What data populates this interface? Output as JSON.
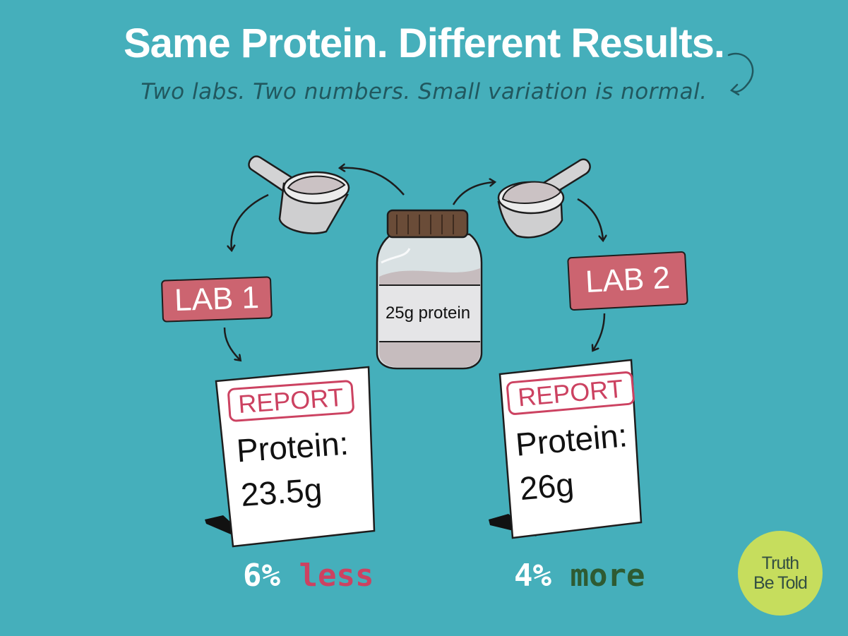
{
  "header": {
    "title": "Same Protein. Different Results.",
    "subtitle": "Two labs. Two numbers. Small variation is normal."
  },
  "jar": {
    "label": "25g protein"
  },
  "labs": [
    {
      "tag": "LAB 1",
      "report": {
        "header": "REPORT",
        "line1": "Protein:",
        "line2": "23.5g"
      },
      "result": {
        "percent": "6%",
        "word": "less",
        "word_color": "#cc4261"
      }
    },
    {
      "tag": "LAB 2",
      "report": {
        "header": "REPORT",
        "line1": "Protein:",
        "line2": "26g"
      },
      "result": {
        "percent": "4%",
        "word": "more",
        "word_color": "#2e5b32"
      }
    }
  ],
  "logo": {
    "line1": "Truth",
    "line2": "Be Told"
  },
  "colors": {
    "background": "#45afbb",
    "lab_tag": "#cc6470",
    "report_header": "#cc4261",
    "logo_bg": "#c6dd5d"
  }
}
